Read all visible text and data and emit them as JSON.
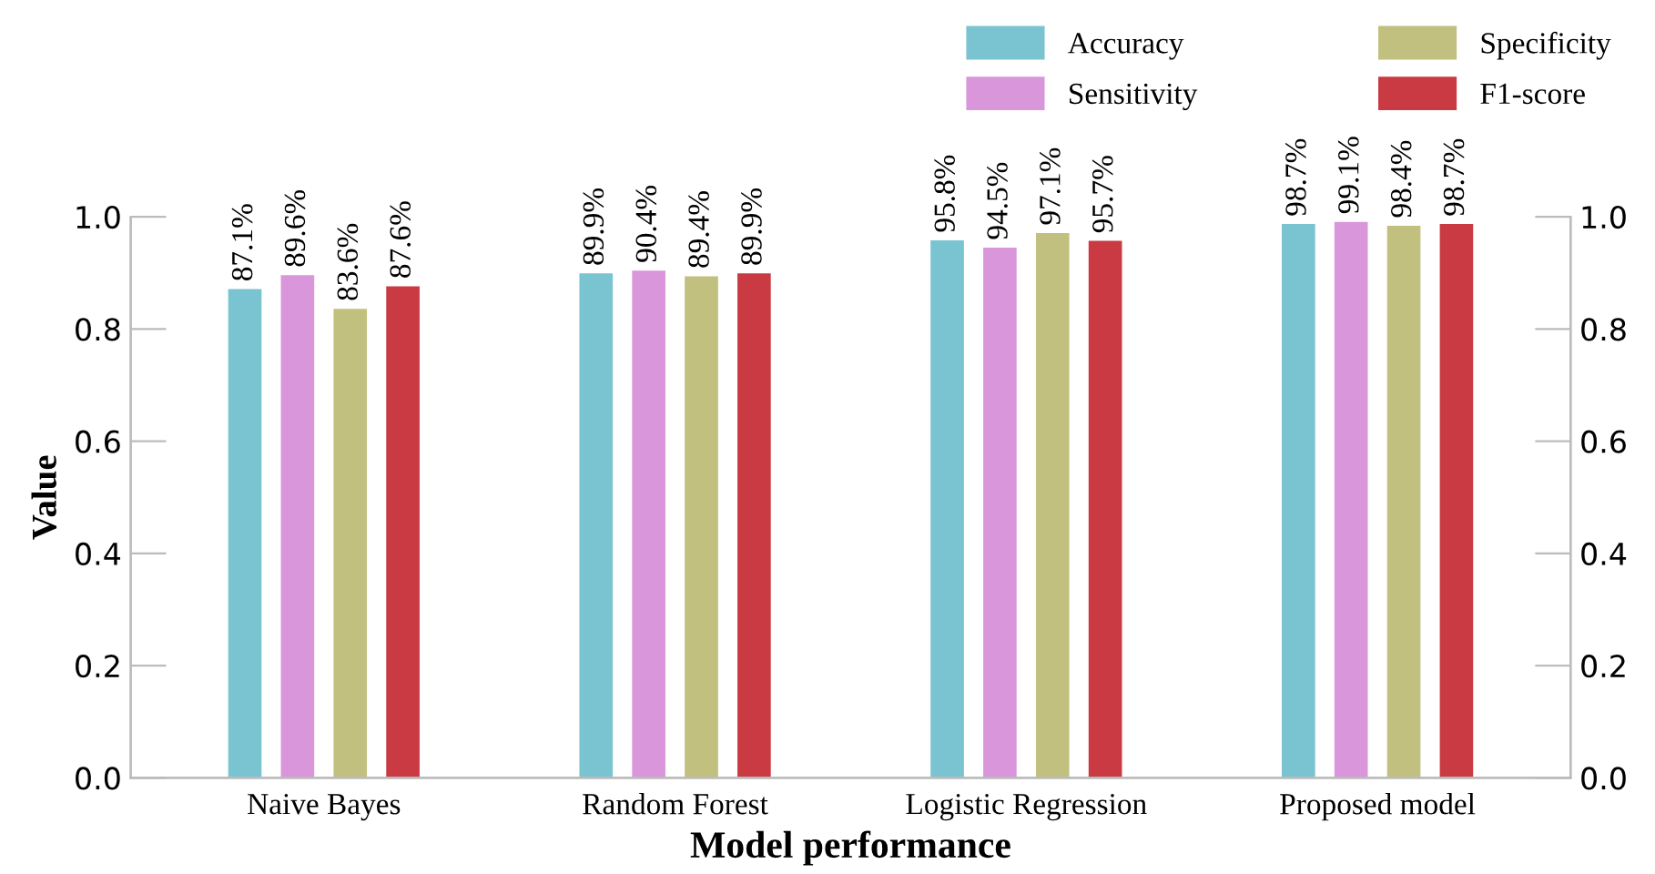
{
  "chart_data": {
    "type": "bar",
    "xlabel": "Model performance",
    "ylabel": "Value",
    "categories": [
      "Naive Bayes",
      "Random Forest",
      "Logistic Regression",
      "Proposed model"
    ],
    "series": [
      {
        "name": "Accuracy",
        "color": "#7ac3d1",
        "values": [
          0.871,
          0.899,
          0.958,
          0.987
        ],
        "value_labels": [
          "87.1%",
          "89.9%",
          "95.8%",
          "98.7%"
        ]
      },
      {
        "name": "Sensitivity",
        "color": "#d996da",
        "values": [
          0.896,
          0.904,
          0.945,
          0.991
        ],
        "value_labels": [
          "89.6%",
          "90.4%",
          "94.5%",
          "99.1%"
        ]
      },
      {
        "name": "Specificity",
        "color": "#c1c07f",
        "values": [
          0.836,
          0.894,
          0.971,
          0.984
        ],
        "value_labels": [
          "83.6%",
          "89.4%",
          "97.1%",
          "98.4%"
        ]
      },
      {
        "name": "F1-score",
        "color": "#c93a42",
        "values": [
          0.876,
          0.899,
          0.957,
          0.987
        ],
        "value_labels": [
          "87.6%",
          "89.9%",
          "95.7%",
          "98.7%"
        ]
      }
    ],
    "ylim": [
      0,
      1.0
    ],
    "yticks": [
      {
        "value": 0,
        "label": "0.0"
      },
      0.2,
      0.4,
      0.6,
      0.8,
      {
        "value": 1,
        "label": "1.0"
      }
    ],
    "y2lim": [
      0,
      1.0
    ],
    "y2ticks": [
      {
        "value": 0,
        "label": "0.0"
      },
      0.2,
      0.4,
      0.6,
      0.8,
      {
        "value": 1,
        "label": "1.0"
      }
    ],
    "grid": false,
    "legend": "top right"
  }
}
